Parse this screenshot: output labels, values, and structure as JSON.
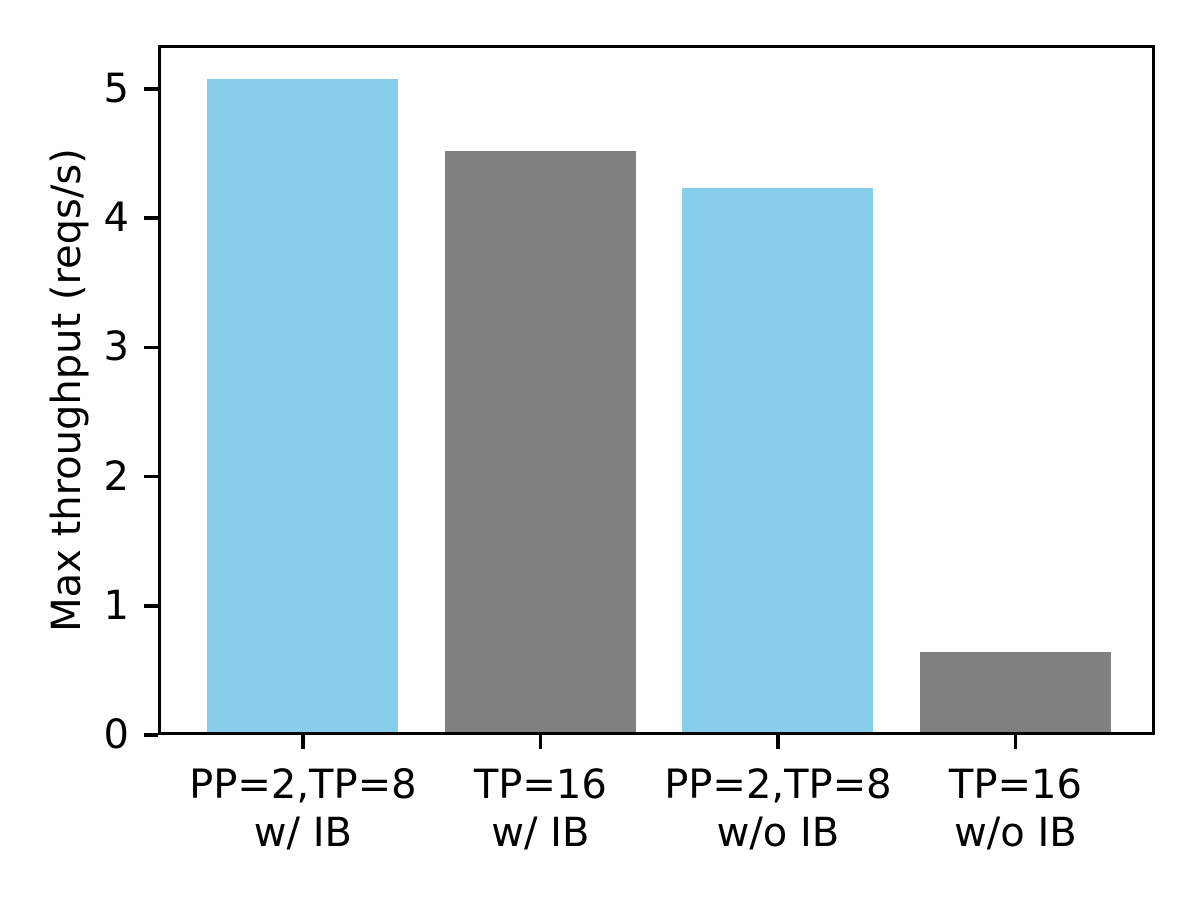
{
  "chart_data": {
    "type": "bar",
    "title": "",
    "xlabel": "",
    "ylabel": "Max throughput (reqs/s)",
    "categories": [
      "PP=2,TP=8\nw/ IB",
      "TP=16\nw/ IB",
      "PP=2,TP=8\nw/o IB",
      "TP=16\nw/o IB"
    ],
    "values": [
      5.08,
      4.52,
      4.23,
      0.64
    ],
    "bar_colors": [
      "#87CEEB",
      "#808080",
      "#87CEEB",
      "#808080"
    ],
    "yticks": [
      0,
      1,
      2,
      3,
      4,
      5
    ],
    "ylim": [
      0,
      5.34
    ],
    "grid": false,
    "legend": null,
    "accent_blue": "#87CEEB",
    "accent_gray": "#808080",
    "spine_color": "#000000"
  }
}
